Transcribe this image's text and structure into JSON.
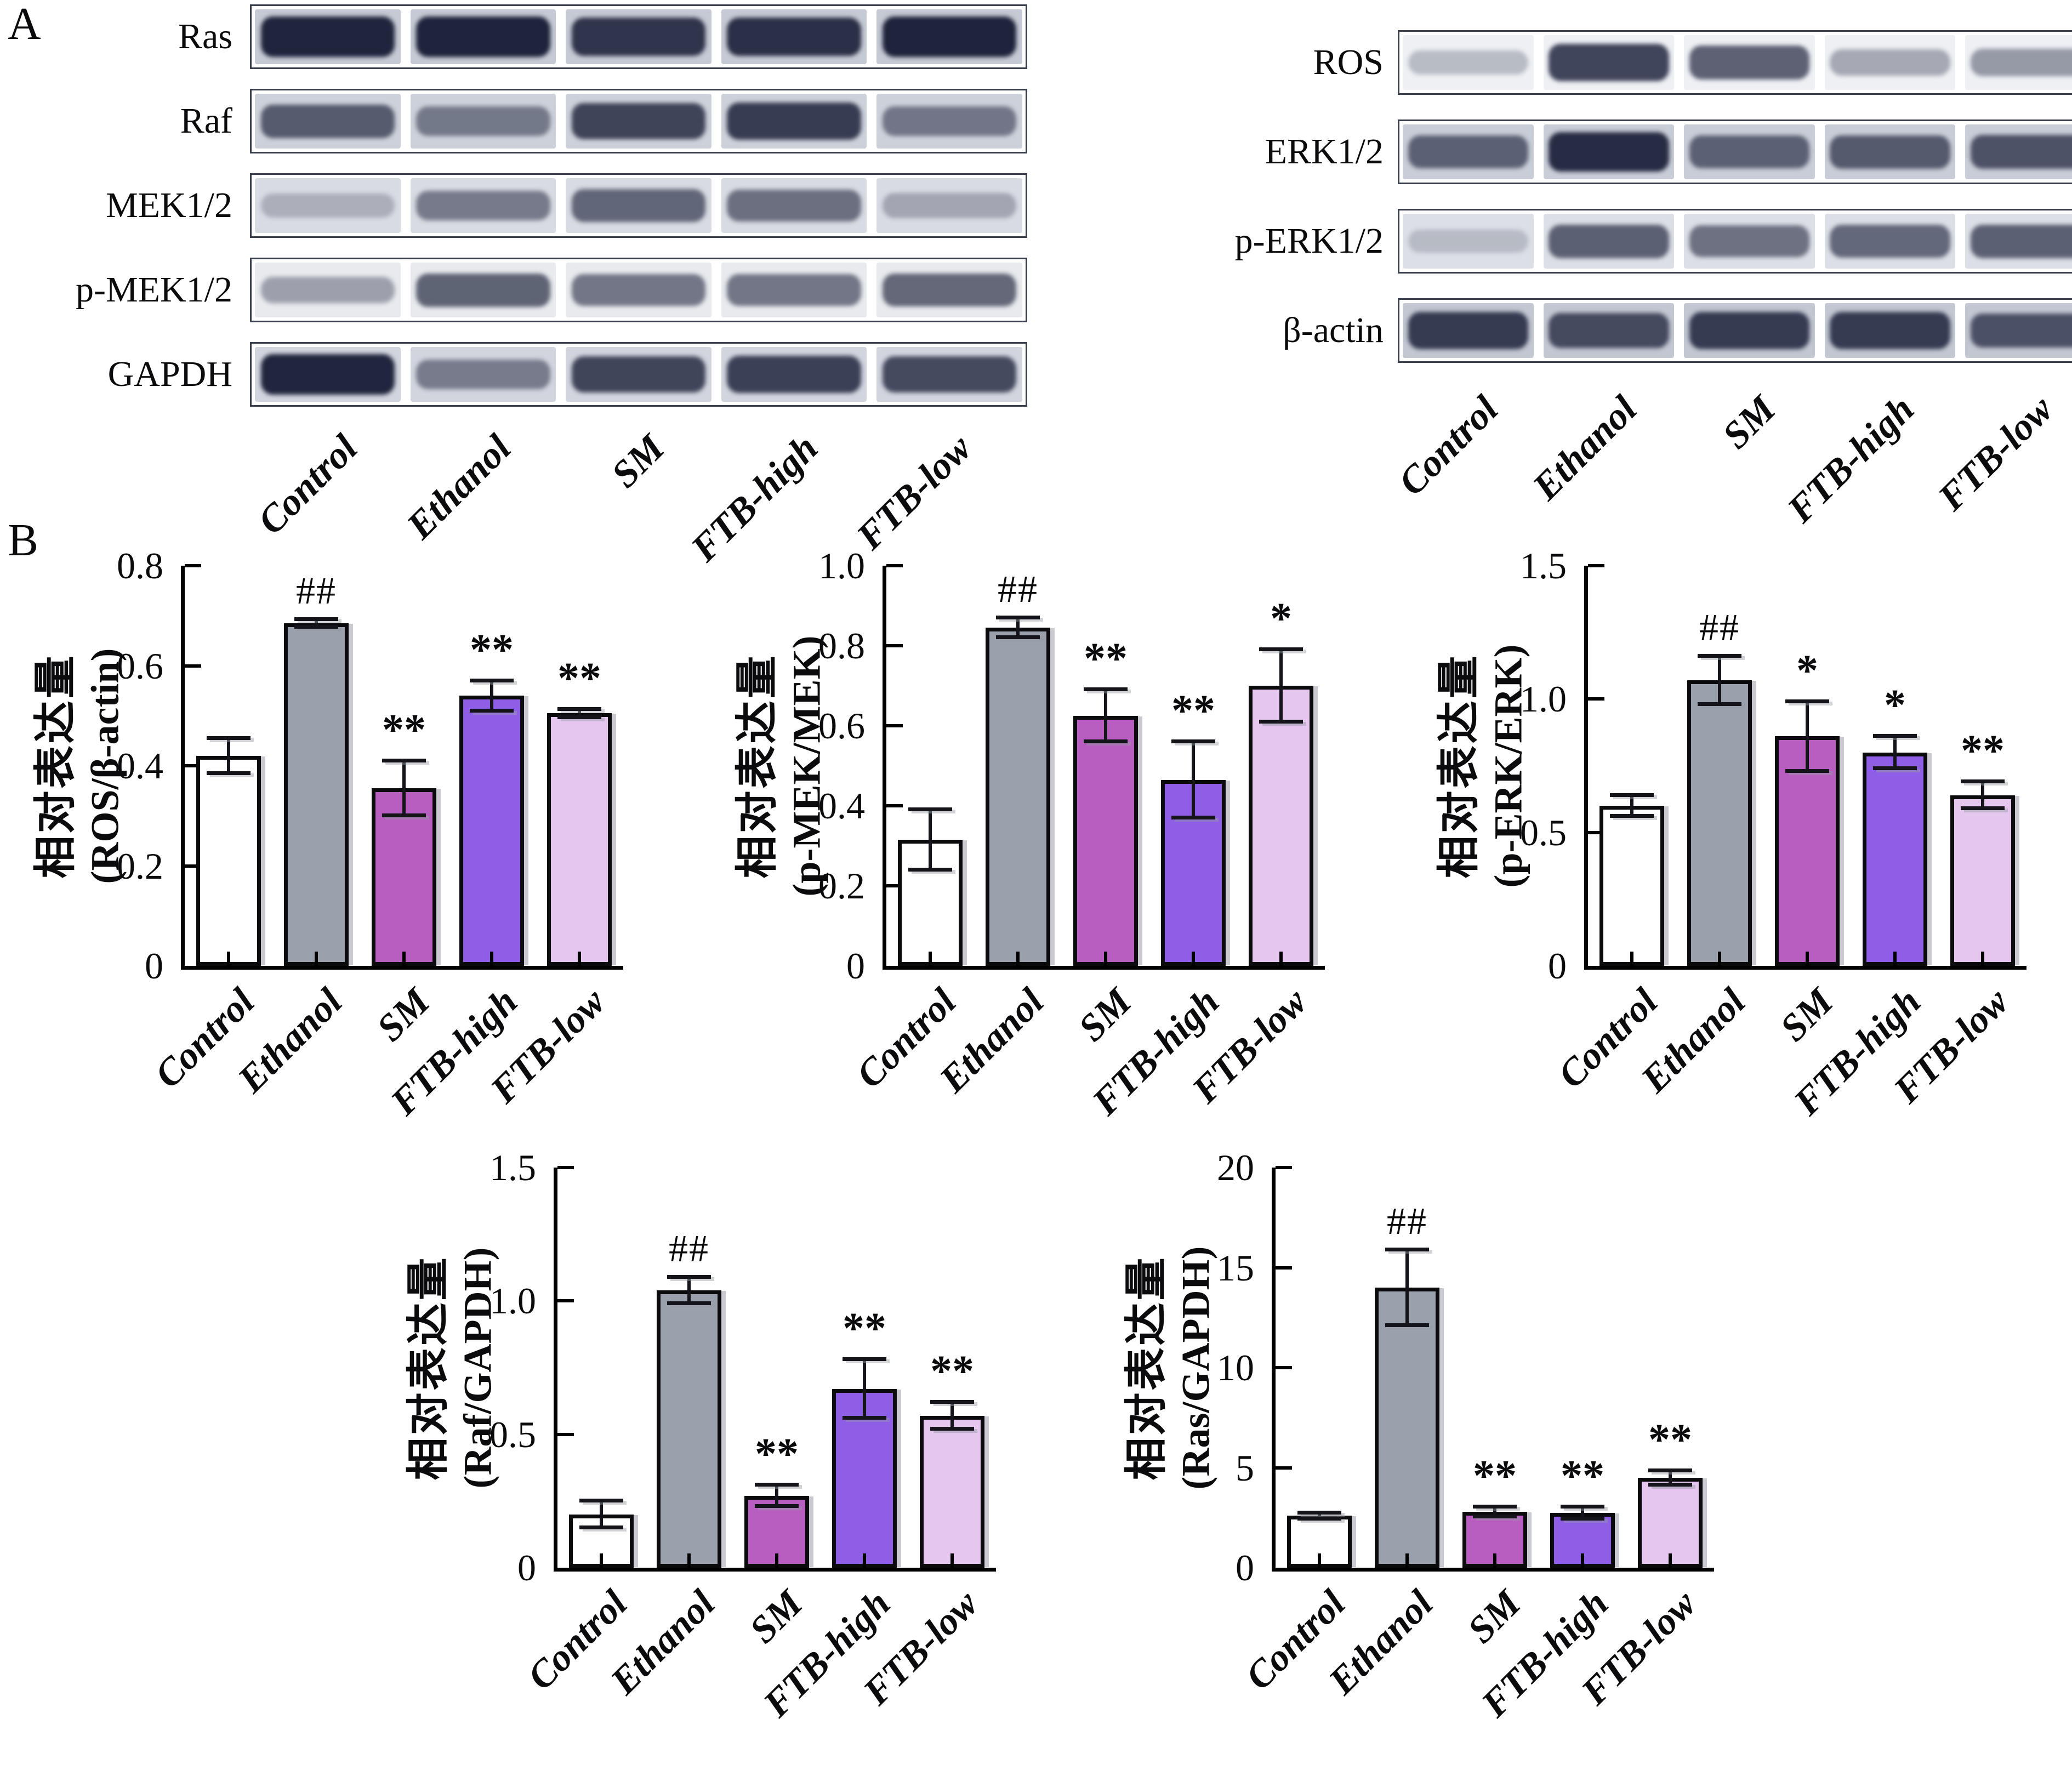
{
  "panel_a": {
    "label": "A",
    "lane_labels": [
      "Control",
      "Ethanol",
      "SM",
      "FTB-high",
      "FTB-low"
    ],
    "left_blots": [
      {
        "label": "Ras",
        "bg": "#c6cad4",
        "bands": [
          0.95,
          0.97,
          0.85,
          0.88,
          0.97
        ]
      },
      {
        "label": "Raf",
        "bg": "#cdd1da",
        "bands": [
          0.6,
          0.4,
          0.75,
          0.8,
          0.42
        ]
      },
      {
        "label": "MEK1/2",
        "bg": "#d8dbe2",
        "bands": [
          0.1,
          0.42,
          0.55,
          0.5,
          0.15
        ]
      },
      {
        "label": "p-MEK1/2",
        "bg": "#e8eaee",
        "bands": [
          0.25,
          0.6,
          0.5,
          0.5,
          0.58
        ]
      },
      {
        "label": "GAPDH",
        "bg": "#d2d5de",
        "bands": [
          0.95,
          0.4,
          0.75,
          0.78,
          0.72
        ]
      }
    ],
    "right_blots": [
      {
        "label": "ROS",
        "bg": "#eef0f4",
        "bands": [
          0.12,
          0.78,
          0.62,
          0.22,
          0.3
        ]
      },
      {
        "label": "ERK1/2",
        "bg": "#c9cdd7",
        "bands": [
          0.55,
          0.9,
          0.55,
          0.6,
          0.65
        ]
      },
      {
        "label": "p-ERK1/2",
        "bg": "#dcdfe6",
        "bands": [
          0.05,
          0.6,
          0.5,
          0.55,
          0.6
        ]
      },
      {
        "label": "β-actin",
        "bg": "#c2c7d2",
        "bands": [
          0.8,
          0.7,
          0.8,
          0.8,
          0.65
        ]
      }
    ]
  },
  "panel_b": {
    "label": "B",
    "bar_colors": [
      "#ffffff",
      "#9aa1ac",
      "#b75ec0",
      "#8e5fe6",
      "#e4c6ee"
    ]
  },
  "chart_data": [
    {
      "type": "bar",
      "ylabel": "相对表达量",
      "ylabel2": "(ROS/β-actin)",
      "categories": [
        "Control",
        "Ethanol",
        "SM",
        "FTB-high",
        "FTB-low"
      ],
      "values": [
        0.42,
        0.685,
        0.355,
        0.54,
        0.505
      ],
      "errors": [
        0.035,
        0.008,
        0.055,
        0.03,
        0.008
      ],
      "sig": [
        "",
        "##",
        "**",
        "**",
        "**"
      ],
      "ylim": [
        0,
        0.8
      ],
      "yticks": [
        "0",
        "0.2",
        "0.4",
        "0.6",
        "0.8"
      ],
      "grid": false,
      "legend": "none"
    },
    {
      "type": "bar",
      "ylabel": "相对表达量",
      "ylabel2": "(p-MEK/MEK)",
      "categories": [
        "Control",
        "Ethanol",
        "SM",
        "FTB-high",
        "FTB-low"
      ],
      "values": [
        0.315,
        0.845,
        0.625,
        0.465,
        0.7
      ],
      "errors": [
        0.075,
        0.025,
        0.065,
        0.095,
        0.09
      ],
      "sig": [
        "",
        "##",
        "**",
        "**",
        "*"
      ],
      "ylim": [
        0,
        1.0
      ],
      "yticks": [
        "0",
        "0.2",
        "0.4",
        "0.6",
        "0.8",
        "1.0"
      ],
      "grid": false,
      "legend": "none"
    },
    {
      "type": "bar",
      "ylabel": "相对表达量",
      "ylabel2": "(p-ERK/ERK)",
      "categories": [
        "Control",
        "Ethanol",
        "SM",
        "FTB-high",
        "FTB-low"
      ],
      "values": [
        0.6,
        1.07,
        0.86,
        0.8,
        0.64
      ],
      "errors": [
        0.04,
        0.09,
        0.13,
        0.06,
        0.05
      ],
      "sig": [
        "",
        "##",
        "*",
        "*",
        "**"
      ],
      "ylim": [
        0,
        1.5
      ],
      "yticks": [
        "0",
        "0.5",
        "1.0",
        "1.5"
      ],
      "grid": false,
      "legend": "none"
    },
    {
      "type": "bar",
      "ylabel": "相对表达量",
      "ylabel2": "(Raf/GAPDH)",
      "categories": [
        "Control",
        "Ethanol",
        "SM",
        "FTB-high",
        "FTB-low"
      ],
      "values": [
        0.2,
        1.04,
        0.27,
        0.67,
        0.57
      ],
      "errors": [
        0.05,
        0.05,
        0.04,
        0.11,
        0.05
      ],
      "sig": [
        "",
        "##",
        "**",
        "**",
        "**"
      ],
      "ylim": [
        0,
        1.5
      ],
      "yticks": [
        "0",
        "0.5",
        "1.0",
        "1.5"
      ],
      "grid": false,
      "legend": "none"
    },
    {
      "type": "bar",
      "ylabel": "相对表达量",
      "ylabel2": "(Ras/GAPDH)",
      "categories": [
        "Control",
        "Ethanol",
        "SM",
        "FTB-high",
        "FTB-low"
      ],
      "values": [
        2.6,
        14.0,
        2.8,
        2.75,
        4.5
      ],
      "errors": [
        0.15,
        1.9,
        0.25,
        0.3,
        0.35
      ],
      "sig": [
        "",
        "##",
        "**",
        "**",
        "**"
      ],
      "ylim": [
        0,
        20
      ],
      "yticks": [
        "0",
        "5",
        "10",
        "15",
        "20"
      ],
      "grid": false,
      "legend": "none"
    }
  ]
}
